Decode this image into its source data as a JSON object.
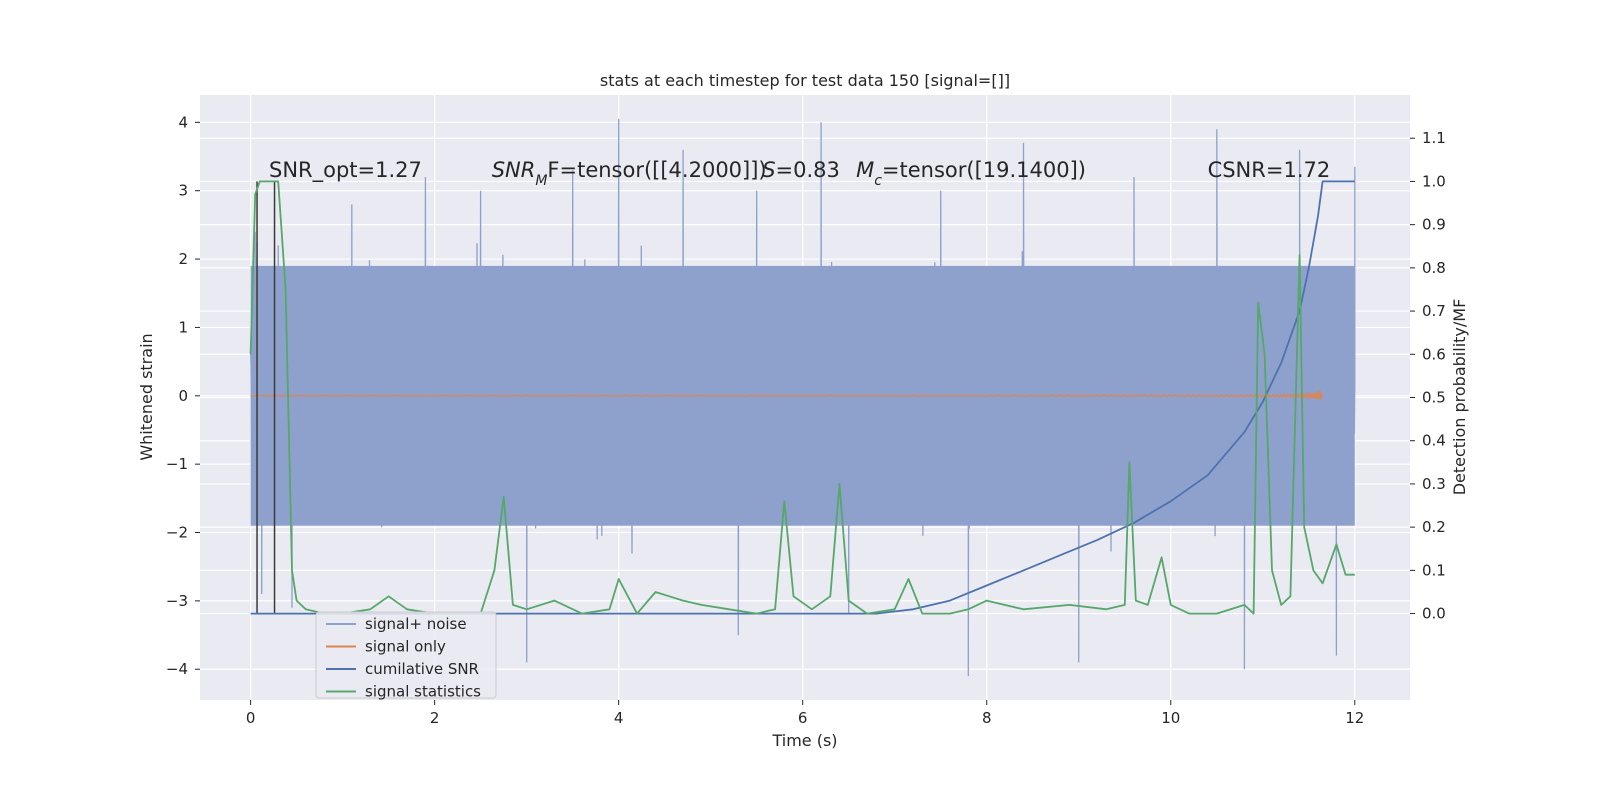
{
  "chart_data": {
    "type": "line",
    "title": "stats at each timestep for test data 150 [signal=[]]",
    "xlabel": "Time (s)",
    "ylabel_left": "Whitened strain",
    "ylabel_right": "Detection probability/MF",
    "xlim": [
      -0.55,
      12.6
    ],
    "ylim_left": [
      -4.45,
      4.4
    ],
    "ylim_right": [
      -0.2,
      1.2
    ],
    "x_ticks": [
      0,
      2,
      4,
      6,
      8,
      10,
      12
    ],
    "x_tick_labels": [
      "0",
      "2",
      "4",
      "6",
      "8",
      "10",
      "12"
    ],
    "y_left_ticks": [
      -4,
      -3,
      -2,
      -1,
      0,
      1,
      2,
      3,
      4
    ],
    "y_left_tick_labels": [
      "−4",
      "−3",
      "−2",
      "−1",
      "0",
      "1",
      "2",
      "3",
      "4"
    ],
    "y_right_ticks": [
      0.0,
      0.1,
      0.2,
      0.3,
      0.4,
      0.5,
      0.6,
      0.7,
      0.8,
      0.9,
      1.0,
      1.1
    ],
    "y_right_tick_labels": [
      "0.0",
      "0.1",
      "0.2",
      "0.3",
      "0.4",
      "0.5",
      "0.6",
      "0.7",
      "0.8",
      "0.9",
      "1.0",
      "1.1"
    ],
    "grid": true,
    "legend_position": "lower-left",
    "colors": {
      "noise": "#8ea1cc",
      "signal_only": "#dd8452",
      "cumulative_snr": "#4c72b0",
      "statistics": "#55a868",
      "vline": "#3a3a3a",
      "background": "#eaeaf2"
    },
    "annotations": [
      {
        "id": "snr_opt",
        "text": "SNR_opt=1.27",
        "x": 0.2,
        "y_right": 1.01
      },
      {
        "id": "snr_mf",
        "prefix": "SNR",
        "subscript": "M",
        "suffix": "F=tensor([[4.2000]])",
        "x": 2.62,
        "y_right": 1.01
      },
      {
        "id": "s_val",
        "italic": "S",
        "suffix": "=0.83",
        "x": 5.56,
        "y_right": 1.01
      },
      {
        "id": "mc_val",
        "italic": "M",
        "subscript": "c",
        "suffix": "=tensor([19.1400])",
        "x": 6.58,
        "y_right": 1.01
      },
      {
        "id": "csnr",
        "text": "CSNR=1.72",
        "x": 10.4,
        "y_right": 1.01
      }
    ],
    "vlines": [
      {
        "x": 0.07,
        "y_right_range": [
          0.0,
          1.0
        ]
      },
      {
        "x": 0.26,
        "y_right_range": [
          0.0,
          1.0
        ]
      }
    ],
    "series": [
      {
        "name": "signal+ noise",
        "axis": "left",
        "style": "dense-noise",
        "x_range": [
          0,
          12
        ],
        "bulk_band": [
          -1.9,
          1.9
        ],
        "spikes": [
          {
            "x": 0.05,
            "y": 2.4
          },
          {
            "x": 0.12,
            "y": -2.9
          },
          {
            "x": 0.3,
            "y": 2.2
          },
          {
            "x": 0.45,
            "y": -3.1
          },
          {
            "x": 1.1,
            "y": 2.8
          },
          {
            "x": 1.9,
            "y": 3.2
          },
          {
            "x": 2.5,
            "y": 3.0
          },
          {
            "x": 3.0,
            "y": -3.9
          },
          {
            "x": 3.5,
            "y": 3.3
          },
          {
            "x": 4.0,
            "y": 4.05
          },
          {
            "x": 4.7,
            "y": 3.6
          },
          {
            "x": 5.3,
            "y": -3.5
          },
          {
            "x": 5.5,
            "y": 3.0
          },
          {
            "x": 6.2,
            "y": 4.0
          },
          {
            "x": 6.5,
            "y": -3.2
          },
          {
            "x": 7.5,
            "y": 3.0
          },
          {
            "x": 7.8,
            "y": -4.1
          },
          {
            "x": 8.4,
            "y": 3.7
          },
          {
            "x": 9.0,
            "y": -3.9
          },
          {
            "x": 9.6,
            "y": 3.2
          },
          {
            "x": 10.5,
            "y": 3.9
          },
          {
            "x": 10.8,
            "y": -4.0
          },
          {
            "x": 11.4,
            "y": 3.6
          },
          {
            "x": 11.8,
            "y": -3.8
          },
          {
            "x": 12.0,
            "y": 3.35
          }
        ]
      },
      {
        "name": "signal only",
        "axis": "left",
        "style": "chirp",
        "x_range": [
          0,
          11.65
        ],
        "max_amplitude": 0.25
      },
      {
        "name": "cumilative SNR",
        "axis": "right",
        "x": [
          0,
          6.8,
          7.2,
          7.6,
          8.0,
          8.4,
          8.8,
          9.2,
          9.6,
          10.0,
          10.4,
          10.8,
          11.0,
          11.2,
          11.4,
          11.5,
          11.6,
          11.65,
          12.0
        ],
        "y": [
          0.0,
          0.0,
          0.01,
          0.03,
          0.065,
          0.1,
          0.135,
          0.17,
          0.21,
          0.26,
          0.32,
          0.42,
          0.49,
          0.58,
          0.7,
          0.8,
          0.92,
          1.0,
          1.0
        ]
      },
      {
        "name": "signal statistics",
        "axis": "right",
        "x": [
          0.0,
          0.05,
          0.1,
          0.2,
          0.3,
          0.38,
          0.45,
          0.5,
          0.6,
          0.8,
          1.0,
          1.3,
          1.5,
          1.7,
          2.0,
          2.5,
          2.65,
          2.75,
          2.85,
          3.0,
          3.3,
          3.6,
          3.9,
          4.0,
          4.2,
          4.4,
          4.55,
          4.7,
          4.9,
          5.2,
          5.5,
          5.7,
          5.8,
          5.9,
          6.1,
          6.3,
          6.4,
          6.5,
          6.7,
          7.0,
          7.15,
          7.3,
          7.6,
          7.8,
          8.0,
          8.4,
          8.9,
          9.3,
          9.5,
          9.55,
          9.62,
          9.75,
          9.9,
          10.0,
          10.2,
          10.5,
          10.8,
          10.9,
          10.95,
          11.02,
          11.1,
          11.2,
          11.3,
          11.4,
          11.45,
          11.5,
          11.55,
          11.65,
          11.8,
          11.9,
          12.0
        ],
        "y": [
          0.6,
          0.97,
          1.0,
          1.0,
          1.0,
          0.75,
          0.1,
          0.03,
          0.01,
          0.0,
          0.0,
          0.01,
          0.04,
          0.01,
          0.0,
          0.0,
          0.1,
          0.27,
          0.02,
          0.01,
          0.03,
          0.0,
          0.01,
          0.08,
          0.0,
          0.05,
          0.04,
          0.03,
          0.02,
          0.01,
          0.0,
          0.01,
          0.26,
          0.04,
          0.01,
          0.04,
          0.3,
          0.03,
          0.0,
          0.01,
          0.08,
          0.0,
          0.0,
          0.01,
          0.03,
          0.01,
          0.02,
          0.01,
          0.02,
          0.35,
          0.03,
          0.02,
          0.13,
          0.02,
          0.0,
          0.0,
          0.02,
          0.0,
          0.72,
          0.6,
          0.1,
          0.02,
          0.04,
          0.83,
          0.2,
          0.15,
          0.1,
          0.07,
          0.16,
          0.09,
          0.09
        ]
      }
    ],
    "legend": [
      "signal+ noise",
      "signal only",
      "cumilative SNR",
      "signal statistics"
    ]
  }
}
